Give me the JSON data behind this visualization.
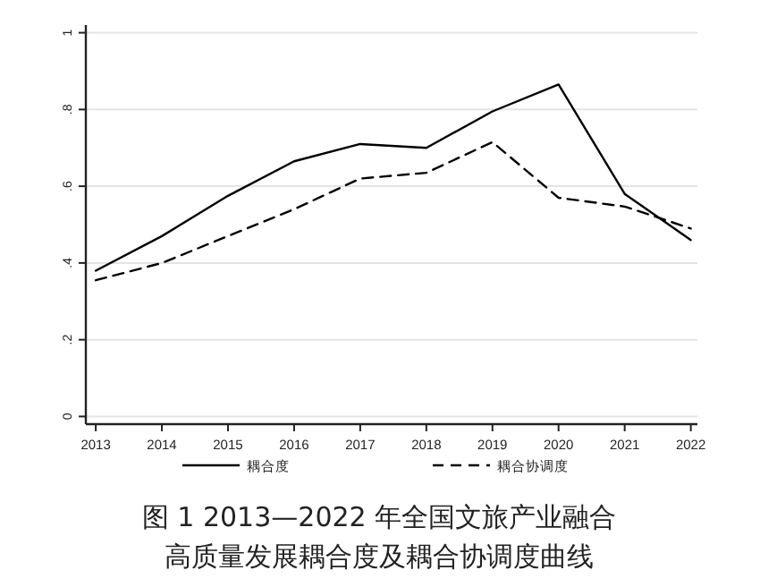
{
  "chart_data": {
    "type": "line",
    "title": "图 1 2013—2022 年全国文旅产业融合高质量发展耦合度及耦合协调度曲线",
    "x": [
      2013,
      2014,
      2015,
      2016,
      2017,
      2018,
      2019,
      2020,
      2021,
      2022
    ],
    "series": [
      {
        "name": "耦合度",
        "color": "#000000",
        "line_style": "solid",
        "values": [
          0.38,
          0.47,
          0.575,
          0.665,
          0.71,
          0.7,
          0.795,
          0.865,
          0.58,
          0.46
        ]
      },
      {
        "name": "耦合协调度",
        "color": "#000000",
        "line_style": "dashed",
        "values": [
          0.355,
          0.4,
          0.47,
          0.54,
          0.62,
          0.635,
          0.715,
          0.57,
          0.547,
          0.49
        ]
      }
    ],
    "xlim": [
      2012.85,
      2022.1
    ],
    "xticks": [
      2013,
      2014,
      2015,
      2016,
      2017,
      2018,
      2019,
      2020,
      2021,
      2022
    ],
    "ylim": [
      -0.02,
      1.02
    ],
    "yticks": [
      0,
      {
        "value": 0.2,
        "label": ".2"
      },
      {
        "value": 0.4,
        "label": ".4"
      },
      {
        "value": 0.6,
        "label": ".6"
      },
      {
        "value": 0.8,
        "label": ".8"
      },
      1
    ],
    "grid": "y",
    "legend": "bottom"
  }
}
